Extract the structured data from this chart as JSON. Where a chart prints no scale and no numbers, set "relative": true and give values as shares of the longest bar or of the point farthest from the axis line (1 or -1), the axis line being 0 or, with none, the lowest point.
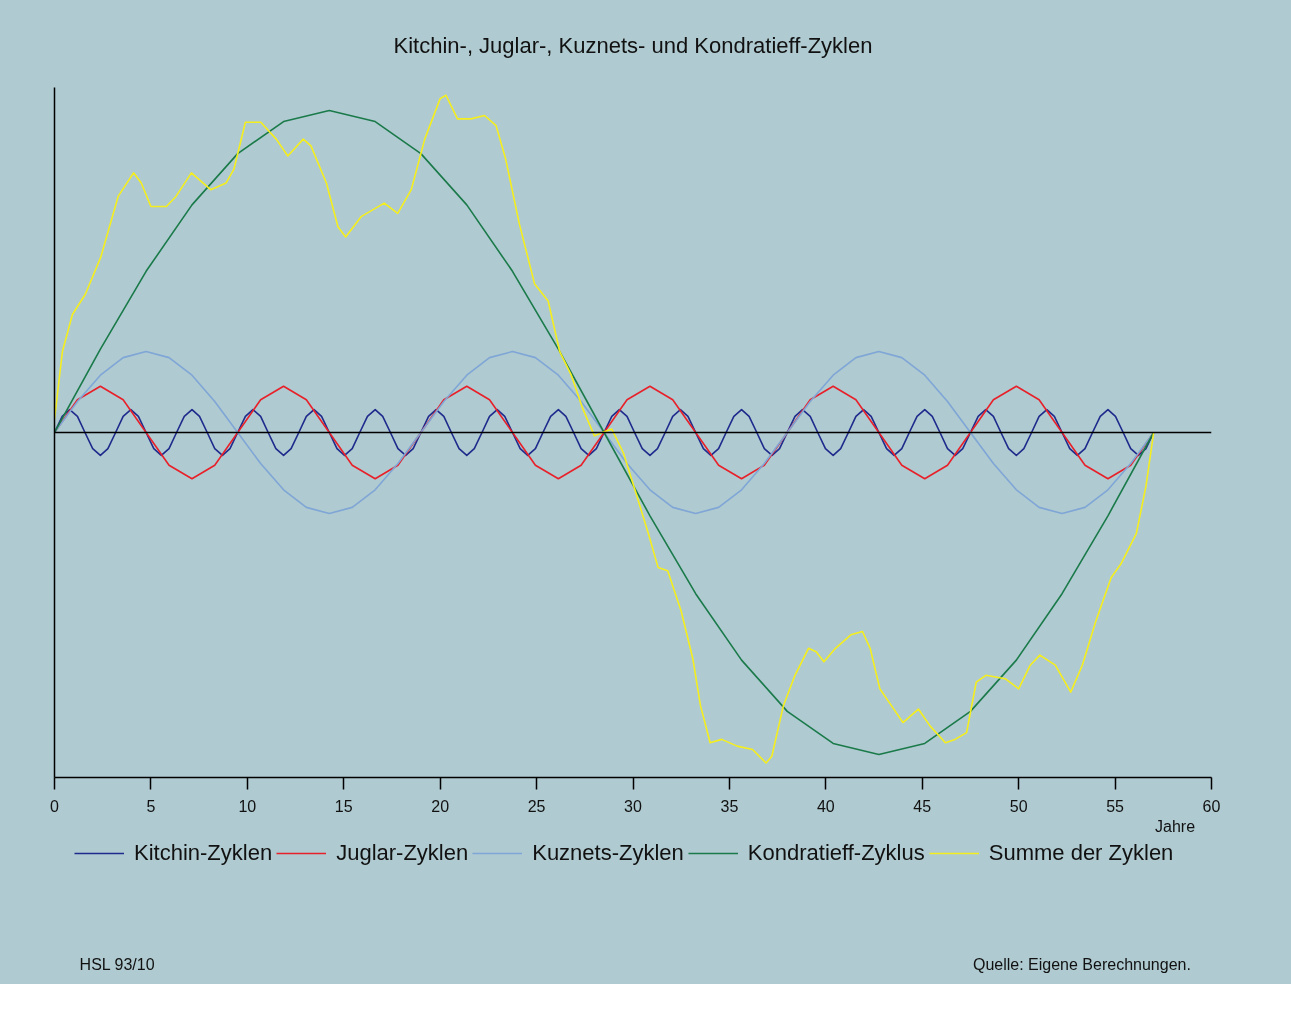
{
  "chart_data": {
    "type": "line",
    "title": "Kitchin-, Juglar-, Kuznets- und Kondratieff-Zyklen",
    "xlabel": "Jahre",
    "relative": true,
    "xlim": [
      0,
      60
    ],
    "xticks": [
      0,
      5,
      10,
      15,
      20,
      25,
      30,
      35,
      40,
      45,
      50,
      55,
      60
    ],
    "grid": false,
    "legend": "bottom",
    "marker": "none",
    "line_style": "solid",
    "annotations": [
      "HSL 93/10",
      "Quelle: Eigene Berechnungen."
    ],
    "series": [
      {
        "name": "Kitchin-Zyklen",
        "color": "#1f2a8c",
        "x": [
          0,
          0.4,
          0.79,
          1.19,
          1.58,
          1.98,
          2.38,
          2.77,
          3.17,
          3.56,
          3.96,
          4.35,
          4.75,
          5.15,
          5.54,
          5.94,
          6.33,
          6.73,
          7.13,
          7.52,
          7.92,
          8.31,
          8.71,
          9.1,
          9.5,
          9.9,
          10.29,
          10.69,
          11.08,
          11.48,
          11.88,
          12.27,
          12.67,
          13.06,
          13.46,
          13.85,
          14.25,
          14.65,
          15.04,
          15.44,
          15.83,
          16.23,
          16.63,
          17.02,
          17.42,
          17.81,
          18.21,
          18.6,
          19.0,
          19.4,
          19.79,
          20.19,
          20.58,
          20.98,
          21.38,
          21.77,
          22.17,
          22.56,
          22.96,
          23.35,
          23.75,
          24.15,
          24.54,
          24.94,
          25.33,
          25.73,
          26.13,
          26.52,
          26.92,
          27.31,
          27.71,
          28.1,
          28.5,
          28.9,
          29.29,
          29.69,
          30.08,
          30.48,
          30.88,
          31.27,
          31.67,
          32.06,
          32.46,
          32.85,
          33.25,
          33.65,
          34.04,
          34.44,
          34.83,
          35.23,
          35.63,
          36.02,
          36.42,
          36.81,
          37.21,
          37.6,
          38.0,
          38.4,
          38.79,
          39.19,
          39.58,
          39.98,
          40.38,
          40.77,
          41.17,
          41.56,
          41.96,
          42.35,
          42.75,
          43.15,
          43.54,
          43.94,
          44.33,
          44.73,
          45.13,
          45.52,
          45.92,
          46.31,
          46.71,
          47.1,
          47.5,
          47.9,
          48.29,
          48.69,
          49.08,
          49.48,
          49.88,
          50.27,
          50.67,
          51.06,
          51.46,
          51.85,
          52.25,
          52.65,
          53.04,
          53.44,
          53.83,
          54.23,
          54.63,
          55.02,
          55.42,
          55.81,
          56.21,
          56.6,
          57.0
        ],
        "values": [
          0,
          0.048,
          0.068,
          0.048,
          0,
          -0.048,
          -0.068,
          -0.048,
          0,
          0.048,
          0.068,
          0.048,
          0,
          -0.048,
          -0.068,
          -0.048,
          0,
          0.048,
          0.068,
          0.048,
          0,
          -0.048,
          -0.068,
          -0.048,
          0,
          0.048,
          0.068,
          0.048,
          0,
          -0.048,
          -0.068,
          -0.048,
          0,
          0.048,
          0.068,
          0.048,
          0,
          -0.048,
          -0.068,
          -0.048,
          0,
          0.048,
          0.068,
          0.048,
          0,
          -0.048,
          -0.068,
          -0.048,
          0,
          0.048,
          0.068,
          0.048,
          0,
          -0.048,
          -0.068,
          -0.048,
          0,
          0.048,
          0.068,
          0.048,
          0,
          -0.048,
          -0.068,
          -0.048,
          0,
          0.048,
          0.068,
          0.048,
          0,
          -0.048,
          -0.068,
          -0.048,
          0,
          0.048,
          0.068,
          0.048,
          0,
          -0.048,
          -0.068,
          -0.048,
          0,
          0.048,
          0.068,
          0.048,
          0,
          -0.048,
          -0.068,
          -0.048,
          0,
          0.048,
          0.068,
          0.048,
          0,
          -0.048,
          -0.068,
          -0.048,
          0,
          0.048,
          0.068,
          0.048,
          0,
          -0.048,
          -0.068,
          -0.048,
          0,
          0.048,
          0.068,
          0.048,
          0,
          -0.048,
          -0.068,
          -0.048,
          0,
          0.048,
          0.068,
          0.048,
          0,
          -0.048,
          -0.068,
          -0.048,
          0,
          0.048,
          0.068,
          0.048,
          0,
          -0.048,
          -0.068,
          -0.048,
          0,
          0.048,
          0.068,
          0.048,
          0,
          -0.048,
          -0.068,
          -0.048,
          0,
          0.048,
          0.068,
          0.048,
          0,
          -0.048,
          -0.068,
          -0.048,
          0
        ]
      },
      {
        "name": "Juglar-Zyklen",
        "color": "#e8202a",
        "x": [
          0,
          1.19,
          2.38,
          3.56,
          4.75,
          5.94,
          7.13,
          8.31,
          9.5,
          10.69,
          11.88,
          13.06,
          14.25,
          15.44,
          16.63,
          17.81,
          19.0,
          20.19,
          21.38,
          22.56,
          23.75,
          24.94,
          26.13,
          27.31,
          28.5,
          29.69,
          30.88,
          32.06,
          33.25,
          34.44,
          35.63,
          36.81,
          38.0,
          39.19,
          40.38,
          41.56,
          42.75,
          43.94,
          45.13,
          46.31,
          47.5,
          48.69,
          49.88,
          51.06,
          52.25,
          53.44,
          54.63,
          55.81,
          57.0
        ],
        "values": [
          0,
          0.097,
          0.137,
          0.097,
          0,
          -0.097,
          -0.137,
          -0.097,
          0,
          0.097,
          0.137,
          0.097,
          0,
          -0.097,
          -0.137,
          -0.097,
          0,
          0.097,
          0.137,
          0.097,
          0,
          -0.097,
          -0.137,
          -0.097,
          0,
          0.097,
          0.137,
          0.097,
          0,
          -0.097,
          -0.137,
          -0.097,
          0,
          0.097,
          0.137,
          0.097,
          0,
          -0.097,
          -0.137,
          -0.097,
          0,
          0.097,
          0.137,
          0.097,
          0,
          -0.097,
          -0.137,
          -0.097,
          0
        ]
      },
      {
        "name": "Kuznets-Zyklen",
        "color": "#7fa6d6",
        "x": [
          0,
          1.19,
          2.38,
          3.56,
          4.75,
          5.94,
          7.13,
          8.31,
          9.5,
          10.69,
          11.88,
          13.06,
          14.25,
          15.44,
          16.63,
          17.81,
          19.0,
          20.19,
          21.38,
          22.56,
          23.75,
          24.94,
          26.13,
          27.31,
          28.5,
          29.69,
          30.88,
          32.06,
          33.25,
          34.44,
          35.63,
          36.81,
          38.0,
          39.19,
          40.38,
          41.56,
          42.75,
          43.94,
          45.13,
          46.31,
          47.5,
          48.69,
          49.88,
          51.06,
          52.25,
          53.44,
          54.63,
          55.81,
          57.0
        ],
        "values": [
          0,
          0.092,
          0.17,
          0.222,
          0.24,
          0.222,
          0.17,
          0.092,
          0,
          -0.092,
          -0.17,
          -0.222,
          -0.24,
          -0.222,
          -0.17,
          -0.092,
          0,
          0.092,
          0.17,
          0.222,
          0.24,
          0.222,
          0.17,
          0.092,
          0,
          -0.092,
          -0.17,
          -0.222,
          -0.24,
          -0.222,
          -0.17,
          -0.092,
          0,
          0.092,
          0.17,
          0.222,
          0.24,
          0.222,
          0.17,
          0.092,
          0,
          -0.092,
          -0.17,
          -0.222,
          -0.24,
          -0.222,
          -0.17,
          -0.092,
          0
        ]
      },
      {
        "name": "Kondratieff-Zyklus",
        "color": "#1a7a4a",
        "x": [
          0,
          2.38,
          4.75,
          7.13,
          9.5,
          11.88,
          14.25,
          16.63,
          19.0,
          21.38,
          23.75,
          26.13,
          28.5,
          30.88,
          33.25,
          35.63,
          38.0,
          40.38,
          42.75,
          45.13,
          47.5,
          49.88,
          52.25,
          54.63,
          57.0
        ],
        "values": [
          0,
          0.247,
          0.478,
          0.675,
          0.827,
          0.922,
          0.955,
          0.922,
          0.827,
          0.675,
          0.478,
          0.247,
          0,
          -0.247,
          -0.478,
          -0.675,
          -0.827,
          -0.922,
          -0.955,
          -0.922,
          -0.827,
          -0.675,
          -0.478,
          -0.247,
          0
        ]
      },
      {
        "name": "Summe der Zyklen",
        "color": "#f5ee1e",
        "x": [
          0,
          0.41,
          0.93,
          1.6,
          2.4,
          3.3,
          4.1,
          4.5,
          5.0,
          5.8,
          6.3,
          7.1,
          8.1,
          8.9,
          9.3,
          9.9,
          10.7,
          11.5,
          12.1,
          12.9,
          13.3,
          14.1,
          14.7,
          15.1,
          15.9,
          17.1,
          17.8,
          18.5,
          19.2,
          20.0,
          20.3,
          20.9,
          21.6,
          22.3,
          22.9,
          23.4,
          24.1,
          24.9,
          25.6,
          26.2,
          26.8,
          27.4,
          28.0,
          28.4,
          28.9,
          29.5,
          30.1,
          30.8,
          31.3,
          31.8,
          32.5,
          33.1,
          33.5,
          34.0,
          34.6,
          35.4,
          36.2,
          36.9,
          37.2,
          37.8,
          38.4,
          39.1,
          39.5,
          39.9,
          40.5,
          41.3,
          41.9,
          42.3,
          42.8,
          43.4,
          44.0,
          44.8,
          45.4,
          46.2,
          46.7,
          47.3,
          47.8,
          48.3,
          49.3,
          50.0,
          50.6,
          51.1,
          51.9,
          52.7,
          53.3,
          54.0,
          54.8,
          55.3,
          56.1,
          56.6,
          57.0
        ],
        "values": [
          0.04,
          0.24,
          0.35,
          0.41,
          0.52,
          0.7,
          0.77,
          0.74,
          0.67,
          0.67,
          0.7,
          0.77,
          0.72,
          0.74,
          0.78,
          0.92,
          0.92,
          0.87,
          0.82,
          0.87,
          0.85,
          0.74,
          0.61,
          0.58,
          0.64,
          0.68,
          0.65,
          0.72,
          0.87,
          0.99,
          1.0,
          0.93,
          0.93,
          0.94,
          0.91,
          0.81,
          0.62,
          0.44,
          0.39,
          0.24,
          0.17,
          0.07,
          -0.01,
          0,
          0.01,
          -0.06,
          -0.17,
          -0.3,
          -0.4,
          -0.41,
          -0.53,
          -0.67,
          -0.81,
          -0.92,
          -0.91,
          -0.93,
          -0.94,
          -0.98,
          -0.96,
          -0.81,
          -0.72,
          -0.64,
          -0.65,
          -0.68,
          -0.64,
          -0.6,
          -0.59,
          -0.64,
          -0.76,
          -0.81,
          -0.86,
          -0.82,
          -0.87,
          -0.92,
          -0.91,
          -0.89,
          -0.74,
          -0.72,
          -0.73,
          -0.76,
          -0.69,
          -0.66,
          -0.69,
          -0.77,
          -0.69,
          -0.56,
          -0.43,
          -0.39,
          -0.3,
          -0.16,
          0
        ]
      }
    ]
  }
}
